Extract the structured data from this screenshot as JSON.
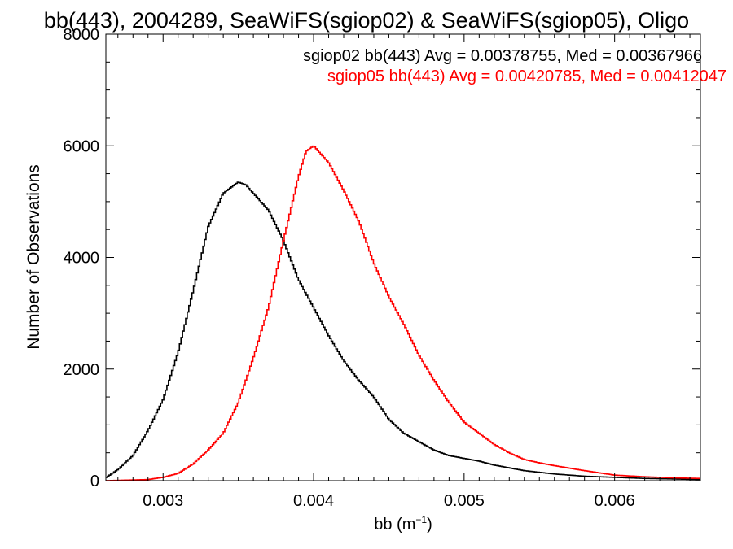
{
  "chart_data": {
    "type": "line",
    "title": "bb(443), 2004289, SeaWiFS(sgiop02) & SeaWiFS(sgiop05), Oligo",
    "xlabel": "bb (m",
    "xlabel_sup": "−1",
    "xlabel_close": ")",
    "ylabel": "Number of Observations",
    "xlim": [
      0.00262,
      0.00657
    ],
    "ylim": [
      0,
      8000
    ],
    "x_ticks": [
      0.003,
      0.004,
      0.005,
      0.006
    ],
    "x_tick_labels": [
      "0.003",
      "0.004",
      "0.005",
      "0.006"
    ],
    "y_ticks": [
      0,
      2000,
      4000,
      6000,
      8000
    ],
    "y_tick_labels": [
      "0",
      "2000",
      "4000",
      "6000",
      "8000"
    ],
    "grid": false,
    "annotations": [
      {
        "text": "sgiop02 bb(443) Avg = 0.00378755, Med = 0.00367966",
        "color": "#000000"
      },
      {
        "text": "sgiop05 bb(443) Avg = 0.00420785, Med = 0.00412047",
        "color": "#ff0000"
      }
    ],
    "series": [
      {
        "color": "#000000",
        "x": [
          0.00262,
          0.0027,
          0.0028,
          0.0029,
          0.003,
          0.0031,
          0.0032,
          0.0033,
          0.0034,
          0.0035,
          0.00355,
          0.0036,
          0.0037,
          0.0038,
          0.0039,
          0.004,
          0.0041,
          0.0042,
          0.0043,
          0.0044,
          0.0045,
          0.0046,
          0.0047,
          0.0048,
          0.0049,
          0.005,
          0.0051,
          0.0052,
          0.0053,
          0.0054,
          0.0056,
          0.0058,
          0.006,
          0.0062,
          0.0064,
          0.00657
        ],
        "y": [
          50,
          200,
          450,
          900,
          1450,
          2300,
          3400,
          4550,
          5150,
          5350,
          5300,
          5150,
          4850,
          4300,
          3600,
          3100,
          2600,
          2150,
          1800,
          1500,
          1100,
          850,
          700,
          550,
          450,
          400,
          350,
          280,
          230,
          180,
          120,
          80,
          60,
          40,
          30,
          20
        ]
      },
      {
        "color": "#ff0000",
        "x": [
          0.00262,
          0.0029,
          0.003,
          0.0031,
          0.0032,
          0.0033,
          0.0034,
          0.0035,
          0.0036,
          0.0037,
          0.0038,
          0.0039,
          0.00395,
          0.004,
          0.0041,
          0.0042,
          0.0043,
          0.0044,
          0.0045,
          0.0046,
          0.0047,
          0.0048,
          0.0049,
          0.005,
          0.0051,
          0.0052,
          0.0053,
          0.0054,
          0.0055,
          0.0056,
          0.0058,
          0.006,
          0.0062,
          0.0064,
          0.00657
        ],
        "y": [
          0,
          20,
          60,
          130,
          300,
          550,
          850,
          1400,
          2200,
          3100,
          4300,
          5450,
          5900,
          6000,
          5700,
          5200,
          4650,
          3900,
          3300,
          2800,
          2250,
          1800,
          1400,
          1050,
          850,
          650,
          500,
          380,
          320,
          270,
          180,
          100,
          70,
          50,
          40
        ]
      }
    ]
  }
}
